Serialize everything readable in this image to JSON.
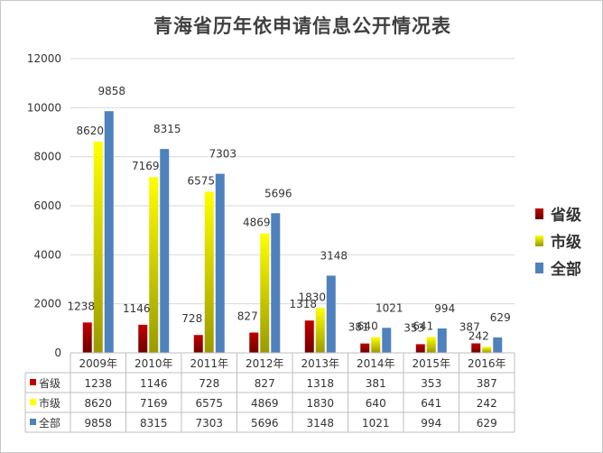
{
  "title": "青海省历年依申请信息公开情况表",
  "chart_data": {
    "type": "bar",
    "title": "青海省历年依申请信息公开情况表",
    "categories": [
      "2009年",
      "2010年",
      "2011年",
      "2012年",
      "2013年",
      "2014年",
      "2015年",
      "2016年"
    ],
    "series": [
      {
        "name": "省级",
        "values": [
          1238,
          1146,
          728,
          827,
          1318,
          381,
          353,
          387
        ],
        "color": "#c00000"
      },
      {
        "name": "市级",
        "values": [
          8620,
          7169,
          6575,
          4869,
          1830,
          640,
          641,
          242
        ],
        "color": "#ffff00"
      },
      {
        "name": "全部",
        "values": [
          9858,
          8315,
          7303,
          5696,
          3148,
          1021,
          994,
          629
        ],
        "color": "#4f81bd"
      }
    ],
    "ylim": [
      0,
      12000
    ],
    "yticks": [
      0,
      2000,
      4000,
      6000,
      8000,
      10000,
      12000
    ],
    "grid": true,
    "legend_position": "right",
    "data_table": true
  }
}
